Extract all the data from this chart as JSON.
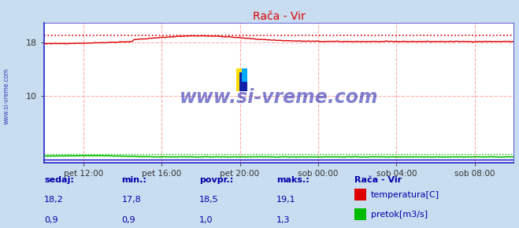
{
  "title": "Rača - Vir",
  "bg_color": "#c8ddf0",
  "plot_bg_color": "#ffffff",
  "border_color": "#2222cc",
  "x_tick_labels": [
    "pet 12:00",
    "pet 16:00",
    "pet 20:00",
    "sob 00:00",
    "sob 04:00",
    "sob 08:00"
  ],
  "x_tick_positions": [
    0.0833,
    0.25,
    0.4167,
    0.5833,
    0.75,
    0.9167
  ],
  "ylim": [
    0,
    21
  ],
  "yticks": [
    10,
    18
  ],
  "temp_min": 17.8,
  "temp_max": 19.1,
  "temp_avg": 18.5,
  "temp_current": 18.2,
  "flow_min": 0.9,
  "flow_max": 1.3,
  "flow_avg": 1.0,
  "flow_current": 0.9,
  "temp_color": "#dd0000",
  "flow_color": "#00bb00",
  "blue_line_color": "#0000cc",
  "grid_v_color": "#ffaaaa",
  "grid_h_color": "#ffaaaa",
  "watermark": "www.si-vreme.com",
  "watermark_color": "#1a1aaa",
  "sidebar_text": "www.si-vreme.com",
  "legend_title": "Rača - Vir",
  "footer_labels": [
    "sedaj:",
    "min.:",
    "povpr.:",
    "maks.:"
  ],
  "footer_values_temp": [
    "18,2",
    "17,8",
    "18,5",
    "19,1"
  ],
  "footer_values_flow": [
    "0,9",
    "0,9",
    "1,0",
    "1,3"
  ],
  "footer_color": "#0000aa",
  "n_points": 288
}
